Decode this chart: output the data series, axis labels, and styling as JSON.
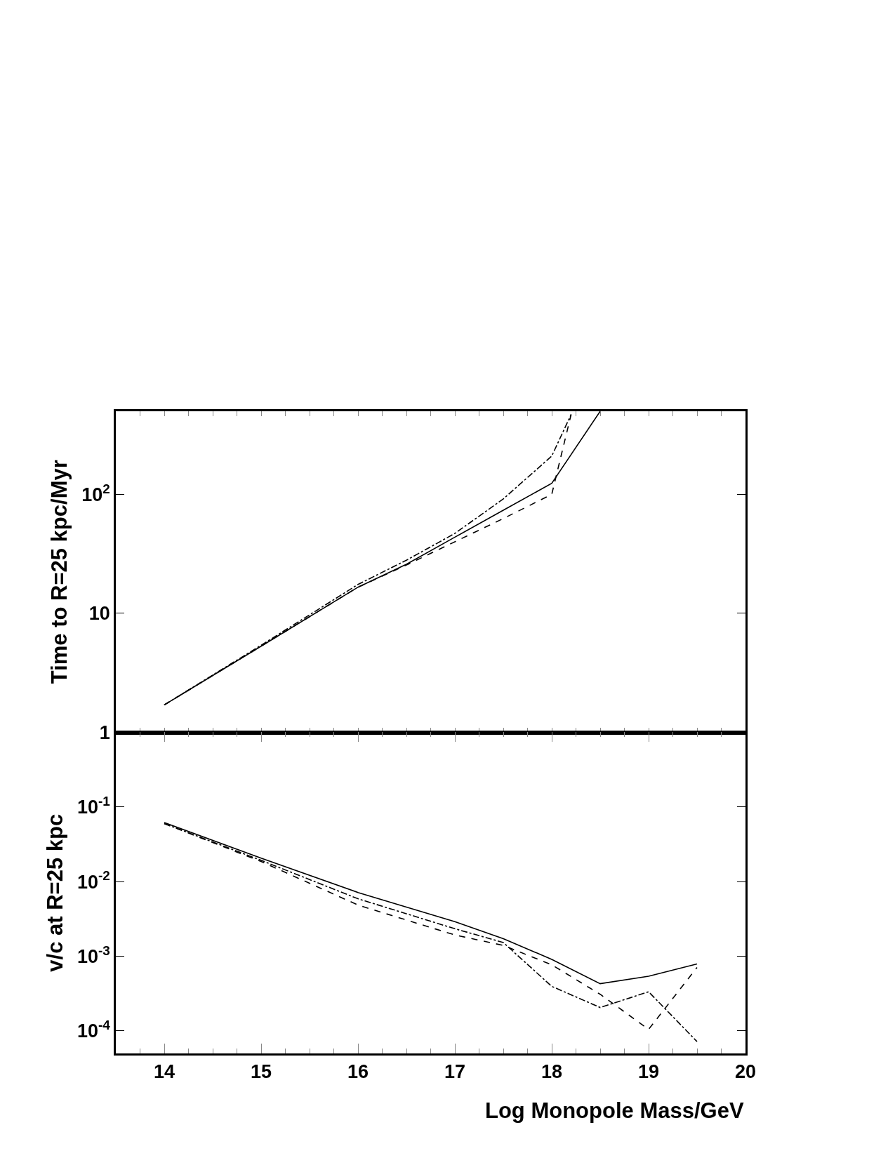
{
  "chart_data": [
    {
      "type": "line",
      "ylabel": "Time to R=25 kpc/Myr",
      "log": "y",
      "tick_labels": "y",
      "xlim": [
        13.5,
        20
      ],
      "xticks": [
        {
          "value": 14,
          "label": null
        },
        {
          "value": 15,
          "label": null
        },
        {
          "value": 16,
          "label": null
        },
        {
          "value": 17,
          "label": null
        },
        {
          "value": 18,
          "label": null
        },
        {
          "value": 19,
          "label": null
        },
        {
          "value": 20,
          "label": null
        }
      ],
      "ylim": [
        1,
        500
      ],
      "yticks": [
        1,
        10,
        {
          "value": 100,
          "label": "10$^{2}$"
        }
      ],
      "series": [
        {
          "color": "#000000",
          "line_style": "solid",
          "x": [
            14,
            15,
            16,
            16.5,
            17,
            17.5,
            18,
            18.5
          ],
          "values": [
            1.7,
            5.3,
            16.6,
            25.9,
            43.7,
            73.6,
            124,
            500
          ]
        },
        {
          "color": "#000000",
          "line_style": "dashed",
          "x": [
            14,
            15,
            16,
            16.5,
            17,
            17.5,
            18,
            18.2
          ],
          "values": [
            1.7,
            5.3,
            16.6,
            25.5,
            40,
            62.7,
            100,
            470
          ]
        },
        {
          "color": "#000000",
          "line_style": "dashdot",
          "x": [
            14,
            15,
            16,
            16.5,
            17,
            17.5,
            18,
            18.2
          ],
          "values": [
            1.7,
            5.4,
            17.5,
            28,
            47,
            91.7,
            210,
            470
          ]
        }
      ]
    },
    {
      "type": "line",
      "ylabel": "v/c at R=25 kpc",
      "xlabel": "Log Monopole Mass/GeV",
      "log": "y",
      "xlim": [
        13.5,
        20
      ],
      "xticks": [
        14,
        15,
        16,
        17,
        18,
        19,
        20
      ],
      "ylim": [
        5e-05,
        1
      ],
      "yticks": [
        {
          "value": 0.1,
          "label": "10$^{-1}$"
        },
        {
          "value": 0.01,
          "label": "10$^{-2}$"
        },
        {
          "value": 0.001,
          "label": "10$^{-3}$"
        },
        {
          "value": 0.0001,
          "label": "10$^{-4}$"
        }
      ],
      "x": [
        14,
        15,
        16,
        17,
        17.5,
        18,
        18.5,
        19,
        19.5
      ],
      "series": [
        {
          "color": "#000000",
          "line_style": "solid",
          "values": [
            0.062,
            0.0206,
            0.00716,
            0.00291,
            0.00172,
            0.00091,
            0.00043,
            0.00054,
            0.00079
          ]
        },
        {
          "color": "#000000",
          "line_style": "dashed",
          "values": [
            0.06,
            0.0186,
            0.00486,
            0.00193,
            0.0014,
            0.00077,
            0.00031,
            0.000105,
            0.00071
          ]
        },
        {
          "color": "#000000",
          "line_style": "dashdot",
          "values": [
            0.06,
            0.0193,
            0.0059,
            0.00234,
            0.00153,
            0.000396,
            0.000206,
            0.000335,
            7.2e-05
          ]
        }
      ]
    }
  ]
}
